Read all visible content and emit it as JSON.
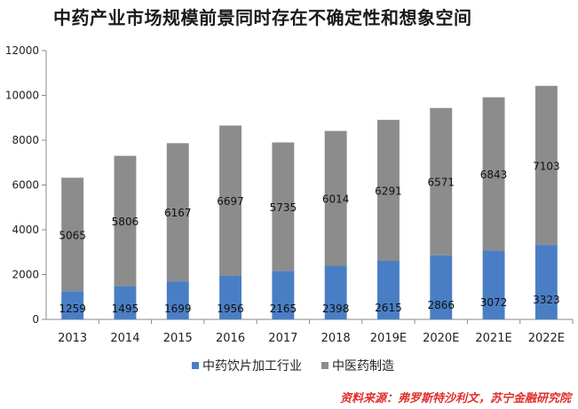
{
  "chart_data": {
    "type": "bar",
    "stacked": true,
    "title": "中药产业市场规模前景同时存在不确定性和想象空间",
    "categories": [
      "2013",
      "2014",
      "2015",
      "2016",
      "2017",
      "2018",
      "2019E",
      "2020E",
      "2021E",
      "2022E"
    ],
    "series": [
      {
        "name": "中药饮片加工行业",
        "color": "#4a7ec4",
        "values": [
          1259,
          1495,
          1699,
          1956,
          2165,
          2398,
          2615,
          2866,
          3072,
          3323
        ]
      },
      {
        "name": "中医药制造",
        "color": "#8c8c8c",
        "values": [
          5065,
          5806,
          6167,
          6697,
          5735,
          6014,
          6291,
          6571,
          6843,
          7103
        ]
      }
    ],
    "ylim": [
      0,
      12000
    ],
    "yticks": [
      "0",
      "2000",
      "4000",
      "6000",
      "8000",
      "10000",
      "12000"
    ],
    "grid": false,
    "legend_position": "bottom",
    "xlabel": "",
    "ylabel": ""
  },
  "source_note": "资料来源：弗罗斯特沙利文，苏宁金融研究院"
}
